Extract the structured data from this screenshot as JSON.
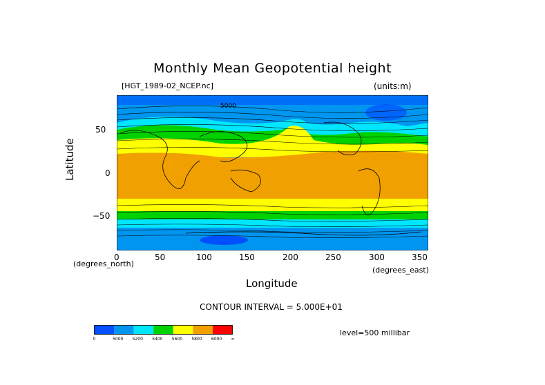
{
  "title": "Monthly Mean Geopotential height",
  "file_label": "[HGT_1989-02_NCEP.nc]",
  "units_label": "(units:m)",
  "y_axis": {
    "label": "Latitude",
    "units": "(degrees_north)",
    "ticks": [
      "50",
      "0",
      "−50"
    ]
  },
  "x_axis": {
    "label": "Longitude",
    "units": "(degrees_east)",
    "ticks": [
      "0",
      "50",
      "100",
      "150",
      "200",
      "250",
      "300",
      "350"
    ]
  },
  "contour_interval": "CONTOUR INTERVAL = 5.000E+01",
  "level": "level=500 millibar",
  "map_labels": [
    "5000"
  ],
  "colorbar": {
    "colors": [
      "#0050ff",
      "#0096f0",
      "#00e6ff",
      "#00d200",
      "#ffff00",
      "#f0a000",
      "#ff0000"
    ],
    "labels": [
      "0",
      "5000",
      "5200",
      "5400",
      "5600",
      "5800",
      "6000",
      "∞"
    ]
  },
  "chart_data": {
    "type": "heatmap",
    "title": "Monthly Mean Geopotential height",
    "xlabel": "Longitude",
    "ylabel": "Latitude",
    "xlim": [
      0,
      360
    ],
    "ylim": [
      -90,
      90
    ],
    "units": "m",
    "levels": [
      0,
      5000,
      5200,
      5400,
      5600,
      5800,
      6000
    ],
    "bands_by_latitude": [
      {
        "lat_range": [
          70,
          90
        ],
        "approx_value": 5100
      },
      {
        "lat_range": [
          55,
          70
        ],
        "approx_value": 5300
      },
      {
        "lat_range": [
          45,
          55
        ],
        "approx_value": 5500
      },
      {
        "lat_range": [
          35,
          45
        ],
        "approx_value": 5700
      },
      {
        "lat_range": [
          -30,
          35
        ],
        "approx_value": 5850
      },
      {
        "lat_range": [
          -45,
          -30
        ],
        "approx_value": 5700
      },
      {
        "lat_range": [
          -55,
          -45
        ],
        "approx_value": 5500
      },
      {
        "lat_range": [
          -65,
          -55
        ],
        "approx_value": 5300
      },
      {
        "lat_range": [
          -80,
          -65
        ],
        "approx_value": 5100
      },
      {
        "lat_range": [
          -90,
          -80
        ],
        "approx_value": 4950
      }
    ]
  }
}
